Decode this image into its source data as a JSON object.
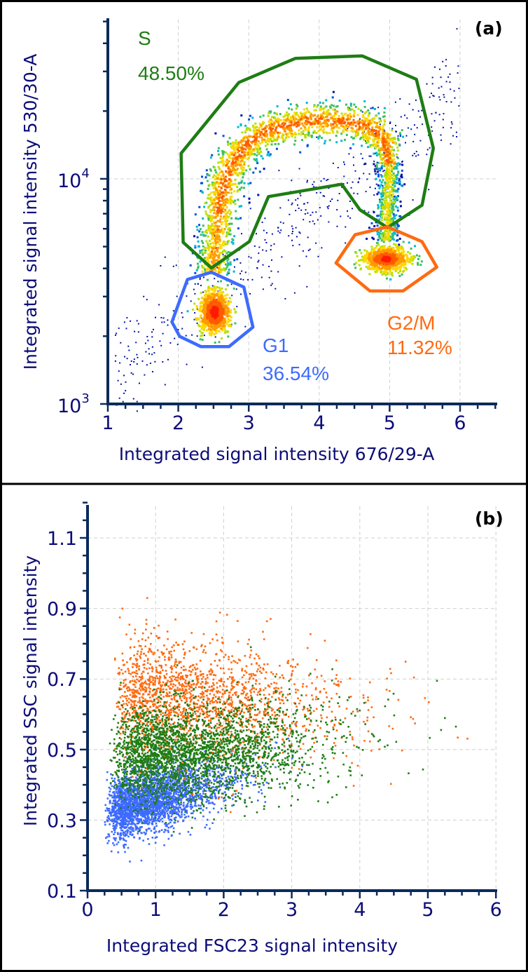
{
  "chart_data": [
    {
      "type": "scatter",
      "panel_label": "(a)",
      "xlabel": "Integrated signal intensity 676/29-A",
      "ylabel": "Integrated signal intensity 530/30-A",
      "xlim": [
        1,
        6.5
      ],
      "ylim": [
        1000,
        51000
      ],
      "yscale": "log",
      "grid": true,
      "colormap": "density (blue-cyan-green-yellow-red)",
      "x_ticks": [
        "1",
        "2",
        "3",
        "4",
        "5",
        "6"
      ],
      "y_ticks": [
        {
          "value": 1000,
          "base": "10",
          "exp": "3"
        },
        {
          "value": 10000,
          "base": "10",
          "exp": "4"
        }
      ],
      "gates": [
        {
          "name": "S",
          "percent": "48.50%",
          "color": "#1e7d14",
          "vertices": [
            [
              2.04,
              12970
            ],
            [
              2.07,
              5220
            ],
            [
              2.47,
              4018
            ],
            [
              3.01,
              5270
            ],
            [
              3.28,
              8340
            ],
            [
              4.32,
              9460
            ],
            [
              4.58,
              7280
            ],
            [
              4.97,
              6070
            ],
            [
              5.46,
              7640
            ],
            [
              5.62,
              13680
            ],
            [
              5.38,
              27670
            ],
            [
              4.61,
              35160
            ],
            [
              3.66,
              34280
            ],
            [
              2.86,
              26800
            ]
          ]
        },
        {
          "name": "G1",
          "percent": "36.54%",
          "color": "#3d6bff",
          "vertices": [
            [
              2.47,
              3846
            ],
            [
              2.93,
              3304
            ],
            [
              3.06,
              2193
            ],
            [
              2.72,
              1798
            ],
            [
              2.32,
              1798
            ],
            [
              2.02,
              1995
            ],
            [
              1.91,
              2313
            ],
            [
              2.13,
              3573
            ]
          ]
        },
        {
          "name": "G2/M",
          "percent": "11.32%",
          "color": "#ff6a10",
          "vertices": [
            [
              4.97,
              6120
            ],
            [
              5.46,
              5260
            ],
            [
              5.67,
              4054
            ],
            [
              5.19,
              3177
            ],
            [
              4.72,
              3177
            ],
            [
              4.24,
              4227
            ],
            [
              4.51,
              5650
            ]
          ]
        }
      ]
    },
    {
      "type": "scatter",
      "panel_label": "(b)",
      "xlabel": "Integrated FSC23 signal intensity",
      "ylabel": "Integrated SSC signal intensity",
      "xlim": [
        0,
        6
      ],
      "ylim": [
        0.1,
        1.19
      ],
      "grid": true,
      "x_ticks": [
        "0",
        "1",
        "2",
        "3",
        "4",
        "5",
        "6"
      ],
      "y_ticks": [
        "0.1",
        "0.3",
        "0.5",
        "0.7",
        "0.9",
        "1.1"
      ],
      "series": [
        {
          "gate": "G1",
          "color": "#3d6bff",
          "center": [
            0.9,
            0.33
          ]
        },
        {
          "gate": "G2/M",
          "color": "#ff6a10",
          "center": [
            1.5,
            0.64
          ]
        },
        {
          "gate": "S",
          "color": "#1e7d14",
          "center": [
            1.7,
            0.52
          ]
        }
      ]
    }
  ]
}
